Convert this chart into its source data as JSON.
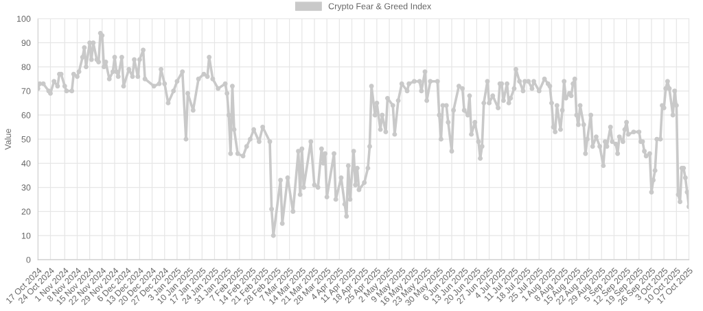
{
  "chart_data": {
    "type": "line",
    "ylabel": "Value",
    "x": [
      "2024-10-17",
      "2024-10-18",
      "2024-10-20",
      "2024-10-23",
      "2024-10-24",
      "2024-10-26",
      "2024-10-28",
      "2024-10-29",
      "2024-10-30",
      "2024-11-01",
      "2024-11-02",
      "2024-11-05",
      "2024-11-06",
      "2024-11-08",
      "2024-11-09",
      "2024-11-11",
      "2024-11-12",
      "2024-11-13",
      "2024-11-15",
      "2024-11-16",
      "2024-11-17",
      "2024-11-19",
      "2024-11-20",
      "2024-11-21",
      "2024-11-22",
      "2024-11-23",
      "2024-11-24",
      "2024-11-26",
      "2024-11-28",
      "2024-11-29",
      "2024-11-30",
      "2024-12-01",
      "2024-12-03",
      "2024-12-04",
      "2024-12-07",
      "2024-12-09",
      "2024-12-10",
      "2024-12-12",
      "2024-12-13",
      "2024-12-15",
      "2024-12-16",
      "2024-12-21",
      "2024-12-24",
      "2024-12-25",
      "2024-12-27",
      "2024-12-29",
      "2025-01-01",
      "2025-01-03",
      "2025-01-06",
      "2025-01-08",
      "2025-01-09",
      "2025-01-12",
      "2025-01-15",
      "2025-01-18",
      "2025-01-20",
      "2025-01-21",
      "2025-01-23",
      "2025-01-26",
      "2025-01-30",
      "2025-01-31",
      "2025-02-01",
      "2025-02-02",
      "2025-02-03",
      "2025-02-04",
      "2025-02-06",
      "2025-02-09",
      "2025-02-11",
      "2025-02-13",
      "2025-02-15",
      "2025-02-18",
      "2025-02-20",
      "2025-02-24",
      "2025-02-25",
      "2025-02-26",
      "2025-03-02",
      "2025-03-03",
      "2025-03-06",
      "2025-03-09",
      "2025-03-12",
      "2025-03-13",
      "2025-03-14",
      "2025-03-15",
      "2025-03-19",
      "2025-03-21",
      "2025-03-23",
      "2025-03-25",
      "2025-03-26",
      "2025-03-27",
      "2025-03-28",
      "2025-04-01",
      "2025-04-02",
      "2025-04-05",
      "2025-04-07",
      "2025-04-08",
      "2025-04-09",
      "2025-04-10",
      "2025-04-12",
      "2025-04-13",
      "2025-04-14",
      "2025-04-15",
      "2025-04-18",
      "2025-04-20",
      "2025-04-21",
      "2025-04-22",
      "2025-04-24",
      "2025-04-25",
      "2025-04-27",
      "2025-04-28",
      "2025-04-30",
      "2025-05-01",
      "2025-05-04",
      "2025-05-05",
      "2025-05-07",
      "2025-05-09",
      "2025-05-12",
      "2025-05-13",
      "2025-05-16",
      "2025-05-19",
      "2025-05-20",
      "2025-05-22",
      "2025-05-23",
      "2025-05-25",
      "2025-05-29",
      "2025-05-30",
      "2025-05-31",
      "2025-06-01",
      "2025-06-03",
      "2025-06-04",
      "2025-06-06",
      "2025-06-07",
      "2025-06-10",
      "2025-06-12",
      "2025-06-13",
      "2025-06-15",
      "2025-06-16",
      "2025-06-17",
      "2025-06-19",
      "2025-06-21",
      "2025-06-22",
      "2025-06-23",
      "2025-06-24",
      "2025-06-26",
      "2025-06-27",
      "2025-06-29",
      "2025-07-02",
      "2025-07-03",
      "2025-07-04",
      "2025-07-05",
      "2025-07-07",
      "2025-07-08",
      "2025-07-09",
      "2025-07-11",
      "2025-07-12",
      "2025-07-14",
      "2025-07-16",
      "2025-07-17",
      "2025-07-19",
      "2025-07-21",
      "2025-07-22",
      "2025-07-25",
      "2025-07-28",
      "2025-07-30",
      "2025-07-31",
      "2025-08-01",
      "2025-08-02",
      "2025-08-03",
      "2025-08-04",
      "2025-08-06",
      "2025-08-07",
      "2025-08-08",
      "2025-08-09",
      "2025-08-11",
      "2025-08-12",
      "2025-08-13",
      "2025-08-14",
      "2025-08-15",
      "2025-08-16",
      "2025-08-17",
      "2025-08-19",
      "2025-08-20",
      "2025-08-21",
      "2025-08-23",
      "2025-08-24",
      "2025-08-26",
      "2025-08-28",
      "2025-08-30",
      "2025-08-31",
      "2025-09-01",
      "2025-09-03",
      "2025-09-04",
      "2025-09-06",
      "2025-09-07",
      "2025-09-08",
      "2025-09-10",
      "2025-09-11",
      "2025-09-12",
      "2025-09-13",
      "2025-09-16",
      "2025-09-19",
      "2025-09-20",
      "2025-09-21",
      "2025-09-22",
      "2025-09-23",
      "2025-09-25",
      "2025-09-26",
      "2025-09-27",
      "2025-09-28",
      "2025-09-29",
      "2025-10-01",
      "2025-10-02",
      "2025-10-03",
      "2025-10-04",
      "2025-10-05",
      "2025-10-06",
      "2025-10-08",
      "2025-10-09",
      "2025-10-10",
      "2025-10-11",
      "2025-10-12",
      "2025-10-13",
      "2025-10-14",
      "2025-10-15",
      "2025-10-16",
      "2025-10-17"
    ],
    "series": [
      {
        "name": "Crypto Fear & Greed Index",
        "color": "#c9c9c9",
        "values": [
          71,
          73,
          73,
          70,
          69,
          74,
          72,
          77,
          77,
          72,
          70,
          70,
          77,
          76,
          78,
          84,
          88,
          80,
          90,
          83,
          90,
          83,
          82,
          94,
          93,
          80,
          82,
          75,
          78,
          84,
          78,
          76,
          84,
          72,
          79,
          76,
          83,
          76,
          83,
          87,
          75,
          72,
          73,
          79,
          73,
          65,
          70,
          74,
          78,
          50,
          69,
          62,
          75,
          77,
          76,
          84,
          75,
          71,
          73,
          69,
          60,
          44,
          72,
          54,
          44,
          43,
          47,
          50,
          54,
          49,
          55,
          49,
          21,
          10,
          33,
          15,
          34,
          20,
          45,
          27,
          46,
          30,
          49,
          31,
          30,
          46,
          40,
          44,
          26,
          44,
          25,
          34,
          23,
          18,
          39,
          25,
          45,
          31,
          38,
          29,
          32,
          38,
          47,
          72,
          60,
          65,
          54,
          60,
          53,
          67,
          64,
          52,
          66,
          73,
          70,
          73,
          74,
          74,
          70,
          78,
          66,
          74,
          74,
          60,
          50,
          64,
          64,
          57,
          45,
          62,
          72,
          71,
          62,
          60,
          68,
          52,
          57,
          49,
          42,
          47,
          65,
          74,
          65,
          68,
          63,
          73,
          73,
          66,
          73,
          65,
          67,
          71,
          79,
          74,
          70,
          74,
          74,
          71,
          74,
          70,
          75,
          73,
          72,
          65,
          55,
          53,
          64,
          54,
          62,
          74,
          67,
          69,
          68,
          73,
          75,
          60,
          56,
          64,
          56,
          44,
          50,
          60,
          47,
          51,
          47,
          39,
          49,
          47,
          55,
          49,
          48,
          44,
          51,
          49,
          54,
          57,
          52,
          53,
          53,
          49,
          49,
          45,
          43,
          44,
          28,
          33,
          37,
          50,
          50,
          64,
          63,
          71,
          74,
          71,
          60,
          70,
          64,
          27,
          24,
          38,
          38,
          34,
          28,
          22
        ]
      }
    ],
    "xlim": [
      "2024-10-17",
      "2025-10-17"
    ],
    "xticks": [
      {
        "value": "2024-10-17",
        "label": "17 Oct 2024"
      },
      {
        "value": "2024-10-24",
        "label": "24 Oct 2024"
      },
      {
        "value": "2024-11-01",
        "label": "1 Nov 2024"
      },
      {
        "value": "2024-11-08",
        "label": "8 Nov 2024"
      },
      {
        "value": "2024-11-15",
        "label": "15 Nov 2024"
      },
      {
        "value": "2024-11-22",
        "label": "22 Nov 2024"
      },
      {
        "value": "2024-11-29",
        "label": "29 Nov 2024"
      },
      {
        "value": "2024-12-06",
        "label": "6 Dec 2024"
      },
      {
        "value": "2024-12-13",
        "label": "13 Dec 2024"
      },
      {
        "value": "2024-12-20",
        "label": "20 Dec 2024"
      },
      {
        "value": "2024-12-27",
        "label": "27 Dec 2024"
      },
      {
        "value": "2025-01-03",
        "label": "3 Jan 2025"
      },
      {
        "value": "2025-01-10",
        "label": "10 Jan 2025"
      },
      {
        "value": "2025-01-17",
        "label": "17 Jan 2025"
      },
      {
        "value": "2025-01-24",
        "label": "24 Jan 2025"
      },
      {
        "value": "2025-01-31",
        "label": "31 Jan 2025"
      },
      {
        "value": "2025-02-07",
        "label": "7 Feb 2025"
      },
      {
        "value": "2025-02-14",
        "label": "14 Feb 2025"
      },
      {
        "value": "2025-02-21",
        "label": "21 Feb 2025"
      },
      {
        "value": "2025-02-28",
        "label": "28 Feb 2025"
      },
      {
        "value": "2025-03-07",
        "label": "7 Mar 2025"
      },
      {
        "value": "2025-03-14",
        "label": "14 Mar 2025"
      },
      {
        "value": "2025-03-21",
        "label": "21 Mar 2025"
      },
      {
        "value": "2025-03-28",
        "label": "28 Mar 2025"
      },
      {
        "value": "2025-04-04",
        "label": "4 Apr 2025"
      },
      {
        "value": "2025-04-11",
        "label": "11 Apr 2025"
      },
      {
        "value": "2025-04-18",
        "label": "18 Apr 2025"
      },
      {
        "value": "2025-04-25",
        "label": "25 Apr 2025"
      },
      {
        "value": "2025-05-02",
        "label": "2 May 2025"
      },
      {
        "value": "2025-05-09",
        "label": "9 May 2025"
      },
      {
        "value": "2025-05-16",
        "label": "16 May 2025"
      },
      {
        "value": "2025-05-23",
        "label": "23 May 2025"
      },
      {
        "value": "2025-05-30",
        "label": "30 May 2025"
      },
      {
        "value": "2025-06-06",
        "label": "6 Jun 2025"
      },
      {
        "value": "2025-06-13",
        "label": "13 Jun 2025"
      },
      {
        "value": "2025-06-20",
        "label": "20 Jun 2025"
      },
      {
        "value": "2025-06-27",
        "label": "27 Jun 2025"
      },
      {
        "value": "2025-07-04",
        "label": "4 Jul 2025"
      },
      {
        "value": "2025-07-11",
        "label": "11 Jul 2025"
      },
      {
        "value": "2025-07-18",
        "label": "18 Jul 2025"
      },
      {
        "value": "2025-07-25",
        "label": "25 Jul 2025"
      },
      {
        "value": "2025-08-01",
        "label": "1 Aug 2025"
      },
      {
        "value": "2025-08-08",
        "label": "8 Aug 2025"
      },
      {
        "value": "2025-08-15",
        "label": "15 Aug 2025"
      },
      {
        "value": "2025-08-22",
        "label": "22 Aug 2025"
      },
      {
        "value": "2025-08-29",
        "label": "29 Aug 2025"
      },
      {
        "value": "2025-09-05",
        "label": "5 Sep 2025"
      },
      {
        "value": "2025-09-12",
        "label": "12 Sep 2025"
      },
      {
        "value": "2025-09-19",
        "label": "19 Sep 2025"
      },
      {
        "value": "2025-09-26",
        "label": "26 Sep 2025"
      },
      {
        "value": "2025-10-03",
        "label": "3 Oct 2025"
      },
      {
        "value": "2025-10-10",
        "label": "10 Oct 2025"
      },
      {
        "value": "2025-10-17",
        "label": "17 Oct 2025"
      }
    ],
    "ylim": [
      0,
      100
    ],
    "yticks": [
      0,
      10,
      20,
      30,
      40,
      50,
      60,
      70,
      80,
      90,
      100
    ],
    "grid": true,
    "legend": "top",
    "marker": "circle",
    "line_style": "solid"
  }
}
